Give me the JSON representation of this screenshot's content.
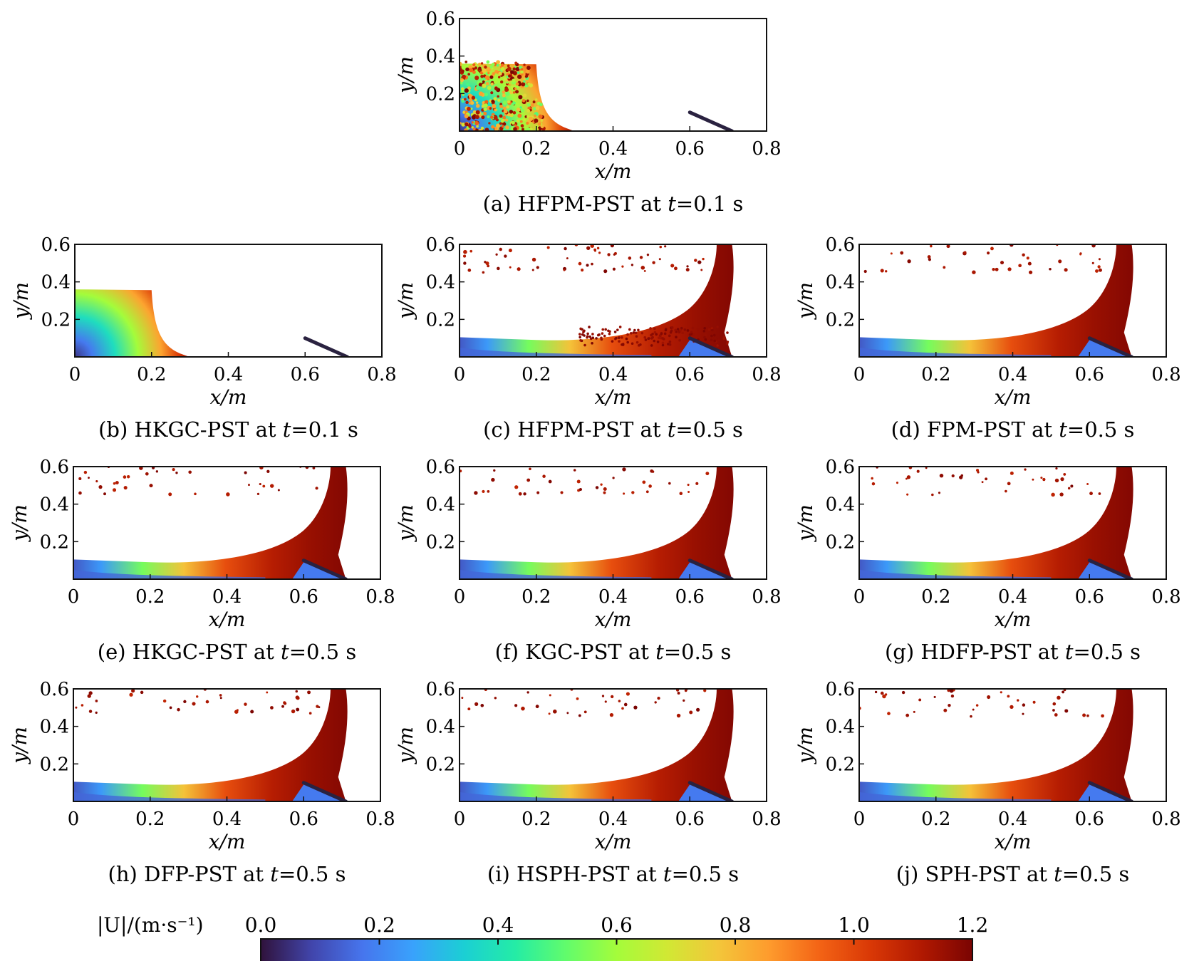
{
  "colors": {
    "colormap": [
      "#30123b",
      "#4145ab",
      "#4675ed",
      "#39a2fc",
      "#1bcfd4",
      "#24eca6",
      "#61fc6c",
      "#a4fc3b",
      "#d1e834",
      "#f3c63a",
      "#fe9b2d",
      "#f36315",
      "#d93806",
      "#b11901",
      "#7a0402"
    ],
    "wall": "#2a2240",
    "frame": "#111111"
  },
  "chart_data": [
    {
      "id": "a",
      "type": "heatmap",
      "method": "HFPM-PST",
      "time": "0.1",
      "time_unit": "s",
      "caption_prefix": "(a)",
      "caption_at": "at",
      "t_symbol": "t",
      "xlabel": "x/m",
      "ylabel": "y/m",
      "xlim": [
        0,
        0.8
      ],
      "ylim": [
        0,
        0.6
      ],
      "xticks": [
        "0",
        "0.2",
        "0.4",
        "0.6",
        "0.8"
      ],
      "yticks": [
        "0.2",
        "0.4",
        "0.6"
      ],
      "state": "early",
      "speckled": true
    },
    {
      "id": "b",
      "type": "heatmap",
      "method": "HKGC-PST",
      "time": "0.1",
      "time_unit": "s",
      "caption_prefix": "(b)",
      "caption_at": "at",
      "t_symbol": "t",
      "xlabel": "x/m",
      "ylabel": "y/m",
      "xlim": [
        0,
        0.8
      ],
      "ylim": [
        0,
        0.6
      ],
      "xticks": [
        "0",
        "0.2",
        "0.4",
        "0.6",
        "0.8"
      ],
      "yticks": [
        "0.2",
        "0.4",
        "0.6"
      ],
      "state": "early",
      "speckled": false
    },
    {
      "id": "c",
      "type": "heatmap",
      "method": "HFPM-PST",
      "time": "0.5",
      "time_unit": "s",
      "caption_prefix": "(c)",
      "caption_at": "at",
      "t_symbol": "t",
      "xlabel": "x/m",
      "ylabel": "y/m",
      "xlim": [
        0,
        0.8
      ],
      "ylim": [
        0,
        0.6
      ],
      "xticks": [
        "0",
        "0.2",
        "0.4",
        "0.6",
        "0.8"
      ],
      "yticks": [
        "0.2",
        "0.4",
        "0.6"
      ],
      "state": "late",
      "noisy": true
    },
    {
      "id": "d",
      "type": "heatmap",
      "method": "FPM-PST",
      "time": "0.5",
      "time_unit": "s",
      "caption_prefix": "(d)",
      "caption_at": "at",
      "t_symbol": "t",
      "xlabel": "x/m",
      "ylabel": "y/m",
      "xlim": [
        0,
        0.8
      ],
      "ylim": [
        0,
        0.6
      ],
      "xticks": [
        "0",
        "0.2",
        "0.4",
        "0.6",
        "0.8"
      ],
      "yticks": [
        "0.2",
        "0.4",
        "0.6"
      ],
      "state": "late",
      "noisy": false
    },
    {
      "id": "e",
      "type": "heatmap",
      "method": "HKGC-PST",
      "time": "0.5",
      "time_unit": "s",
      "caption_prefix": "(e)",
      "caption_at": "at",
      "t_symbol": "t",
      "xlabel": "x/m",
      "ylabel": "y/m",
      "xlim": [
        0,
        0.8
      ],
      "ylim": [
        0,
        0.6
      ],
      "xticks": [
        "0",
        "0.2",
        "0.4",
        "0.6",
        "0.8"
      ],
      "yticks": [
        "0.2",
        "0.4",
        "0.6"
      ],
      "state": "late",
      "noisy": false
    },
    {
      "id": "f",
      "type": "heatmap",
      "method": "KGC-PST",
      "time": "0.5",
      "time_unit": "s",
      "caption_prefix": "(f)",
      "caption_at": "at",
      "t_symbol": "t",
      "xlabel": "x/m",
      "ylabel": "y/m",
      "xlim": [
        0,
        0.8
      ],
      "ylim": [
        0,
        0.6
      ],
      "xticks": [
        "0",
        "0.2",
        "0.4",
        "0.6",
        "0.8"
      ],
      "yticks": [
        "0.2",
        "0.4",
        "0.6"
      ],
      "state": "late",
      "noisy": false
    },
    {
      "id": "g",
      "type": "heatmap",
      "method": "HDFP-PST",
      "time": "0.5",
      "time_unit": "s",
      "caption_prefix": "(g)",
      "caption_at": "at",
      "t_symbol": "t",
      "xlabel": "x/m",
      "ylabel": "y/m",
      "xlim": [
        0,
        0.8
      ],
      "ylim": [
        0,
        0.6
      ],
      "xticks": [
        "0",
        "0.2",
        "0.4",
        "0.6",
        "0.8"
      ],
      "yticks": [
        "0.2",
        "0.4",
        "0.6"
      ],
      "state": "late",
      "noisy": false
    },
    {
      "id": "h",
      "type": "heatmap",
      "method": "DFP-PST",
      "time": "0.5",
      "time_unit": "s",
      "caption_prefix": "(h)",
      "caption_at": "at",
      "t_symbol": "t",
      "xlabel": "x/m",
      "ylabel": "y/m",
      "xlim": [
        0,
        0.8
      ],
      "ylim": [
        0,
        0.6
      ],
      "xticks": [
        "0",
        "0.2",
        "0.4",
        "0.6",
        "0.8"
      ],
      "yticks": [
        "0.2",
        "0.4",
        "0.6"
      ],
      "state": "late",
      "noisy": false
    },
    {
      "id": "i",
      "type": "heatmap",
      "method": "HSPH-PST",
      "time": "0.5",
      "time_unit": "s",
      "caption_prefix": "(i)",
      "caption_at": "at",
      "t_symbol": "t",
      "xlabel": "x/m",
      "ylabel": "y/m",
      "xlim": [
        0,
        0.8
      ],
      "ylim": [
        0,
        0.6
      ],
      "xticks": [
        "0",
        "0.2",
        "0.4",
        "0.6",
        "0.8"
      ],
      "yticks": [
        "0.2",
        "0.4",
        "0.6"
      ],
      "state": "late",
      "noisy": false
    },
    {
      "id": "j",
      "type": "heatmap",
      "method": "SPH-PST",
      "time": "0.5",
      "time_unit": "s",
      "caption_prefix": "(j)",
      "caption_at": "at",
      "t_symbol": "t",
      "xlabel": "x/m",
      "ylabel": "y/m",
      "xlim": [
        0,
        0.8
      ],
      "ylim": [
        0,
        0.6
      ],
      "xticks": [
        "0",
        "0.2",
        "0.4",
        "0.6",
        "0.8"
      ],
      "yticks": [
        "0.2",
        "0.4",
        "0.6"
      ],
      "state": "late",
      "noisy": false
    }
  ],
  "colorbar": {
    "label": "|U|/(m·s⁻¹)",
    "range": [
      0,
      1.2
    ],
    "ticks": [
      "0.0",
      "0.2",
      "0.4",
      "0.6",
      "0.8",
      "1.0",
      "1.2"
    ]
  }
}
